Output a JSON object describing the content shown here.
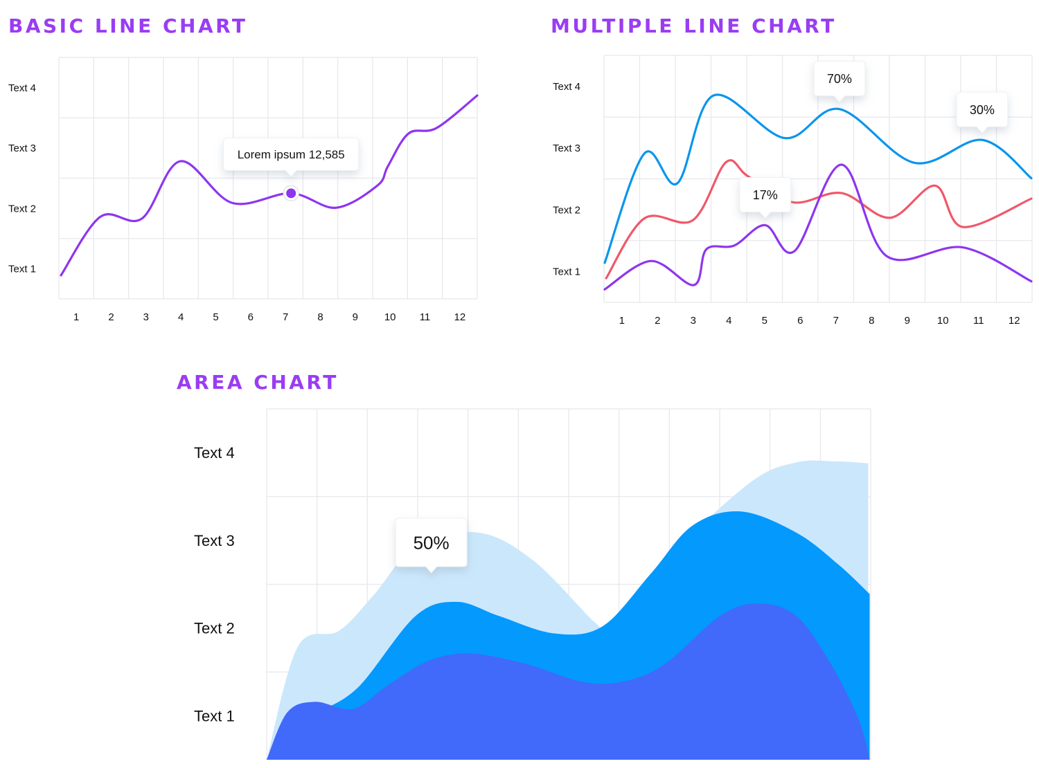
{
  "theme": {
    "title_color": "#9A3CF4",
    "grid_color": "#E6E8EC",
    "tooltip_bg": "#FFFFFF"
  },
  "chart_data": [
    {
      "type": "line",
      "title": "BASIC LINE CHART",
      "xlabel": "",
      "ylabel": "",
      "x_ticks": [
        "1",
        "2",
        "3",
        "4",
        "5",
        "6",
        "7",
        "8",
        "9",
        "10",
        "11",
        "12"
      ],
      "y_ticks": [
        "Text 1",
        "Text 2",
        "Text 3",
        "Text 4"
      ],
      "xlim": [
        0.5,
        12.5
      ],
      "ylim": [
        0.5,
        4.5
      ],
      "grid": true,
      "series": [
        {
          "color": "#8E35EF",
          "points": [
            [
              0.56,
              0.89
            ],
            [
              1.69,
              1.86
            ],
            [
              2.88,
              1.83
            ],
            [
              3.98,
              2.78
            ],
            [
              5.47,
              2.09
            ],
            [
              7.16,
              2.25
            ],
            [
              8.45,
              2.01
            ],
            [
              9.64,
              2.38
            ],
            [
              9.94,
              2.7
            ],
            [
              10.53,
              3.24
            ],
            [
              11.33,
              3.33
            ],
            [
              12.5,
              3.87
            ]
          ]
        }
      ],
      "annotations": [
        {
          "text": "Lorem ipsum 12,585",
          "series": 0,
          "x": 7.16,
          "y": 2.25,
          "marker": true
        }
      ]
    },
    {
      "type": "line",
      "title": "MULTIPLE LINE CHART",
      "xlabel": "",
      "ylabel": "",
      "x_ticks": [
        "1",
        "2",
        "3",
        "4",
        "5",
        "6",
        "7",
        "8",
        "9",
        "10",
        "11",
        "12"
      ],
      "y_ticks": [
        "Text 1",
        "Text 2",
        "Text 3",
        "Text 4"
      ],
      "xlim": [
        0.5,
        12.5
      ],
      "ylim": [
        0.5,
        4.5
      ],
      "grid": true,
      "series": [
        {
          "color": "#0A95EC",
          "points": [
            [
              0.52,
              1.14
            ],
            [
              1.63,
              2.91
            ],
            [
              2.56,
              2.43
            ],
            [
              3.57,
              3.85
            ],
            [
              5.57,
              3.16
            ],
            [
              7.1,
              3.63
            ],
            [
              9.2,
              2.76
            ],
            [
              11.1,
              3.13
            ],
            [
              12.48,
              2.51
            ]
          ]
        },
        {
          "color": "#F0586A",
          "points": [
            [
              0.56,
              0.89
            ],
            [
              1.63,
              1.86
            ],
            [
              2.99,
              1.83
            ],
            [
              3.92,
              2.77
            ],
            [
              4.54,
              2.54
            ],
            [
              5.8,
              2.12
            ],
            [
              7.16,
              2.27
            ],
            [
              8.52,
              1.87
            ],
            [
              9.78,
              2.39
            ],
            [
              10.56,
              1.72
            ],
            [
              12.48,
              2.18
            ]
          ]
        },
        {
          "color": "#8E35EF",
          "points": [
            [
              0.52,
              0.71
            ],
            [
              1.82,
              1.17
            ],
            [
              3.02,
              0.78
            ],
            [
              3.37,
              1.36
            ],
            [
              4.15,
              1.42
            ],
            [
              5.02,
              1.75
            ],
            [
              5.84,
              1.33
            ],
            [
              7.16,
              2.73
            ],
            [
              8.42,
              1.25
            ],
            [
              10.56,
              1.39
            ],
            [
              12.48,
              0.84
            ]
          ]
        }
      ],
      "annotations": [
        {
          "text": "70%",
          "series": 0,
          "x": 7.1,
          "y": 3.63,
          "marker": false
        },
        {
          "text": "30%",
          "series": 0,
          "x": 11.1,
          "y": 3.13,
          "marker": false
        },
        {
          "text": "17%",
          "series": 2,
          "x": 5.02,
          "y": 1.75,
          "marker": false
        }
      ]
    },
    {
      "type": "area",
      "title": "AREA CHART",
      "xlabel": "",
      "ylabel": "",
      "x_ticks": [],
      "y_ticks": [
        "Text 1",
        "Text 2",
        "Text 3",
        "Text 4"
      ],
      "xlim": [
        0.5,
        12.5
      ],
      "ylim": [
        0.5,
        4.5
      ],
      "grid": true,
      "series": [
        {
          "color": "#CBE7FB",
          "points": [
            [
              0.5,
              0.5
            ],
            [
              1.12,
              1.79
            ],
            [
              1.94,
              1.97
            ],
            [
              2.63,
              2.38
            ],
            [
              3.46,
              2.93
            ],
            [
              4.7,
              3.09
            ],
            [
              5.8,
              2.77
            ],
            [
              7.03,
              2.06
            ],
            [
              7.31,
              2.02
            ],
            [
              8.27,
              2.69
            ],
            [
              10.06,
              3.64
            ],
            [
              11.02,
              3.89
            ],
            [
              11.85,
              3.9
            ],
            [
              12.45,
              3.88
            ]
          ]
        },
        {
          "color": "#0399FD",
          "points": [
            [
              1.67,
              1.08
            ],
            [
              2.36,
              1.35
            ],
            [
              3.46,
              2.14
            ],
            [
              4.28,
              2.3
            ],
            [
              5.11,
              2.14
            ],
            [
              6.21,
              1.94
            ],
            [
              7.17,
              2.02
            ],
            [
              8.13,
              2.62
            ],
            [
              8.96,
              3.17
            ],
            [
              9.92,
              3.33
            ],
            [
              11.02,
              3.09
            ],
            [
              11.85,
              2.73
            ],
            [
              12.48,
              2.39
            ]
          ]
        },
        {
          "color": "#4169FA",
          "points": [
            [
              0.5,
              0.5
            ],
            [
              0.91,
              1.04
            ],
            [
              1.46,
              1.16
            ],
            [
              2.22,
              1.08
            ],
            [
              2.91,
              1.35
            ],
            [
              3.73,
              1.63
            ],
            [
              4.56,
              1.71
            ],
            [
              5.66,
              1.59
            ],
            [
              6.76,
              1.39
            ],
            [
              7.58,
              1.39
            ],
            [
              8.41,
              1.59
            ],
            [
              9.51,
              2.14
            ],
            [
              10.27,
              2.28
            ],
            [
              11.02,
              2.14
            ],
            [
              11.71,
              1.59
            ],
            [
              12.26,
              0.96
            ],
            [
              12.48,
              0.5
            ]
          ]
        }
      ],
      "annotations": [
        {
          "text": "50%",
          "series": 0,
          "x": 3.77,
          "y": 2.63,
          "marker": false
        }
      ]
    }
  ]
}
